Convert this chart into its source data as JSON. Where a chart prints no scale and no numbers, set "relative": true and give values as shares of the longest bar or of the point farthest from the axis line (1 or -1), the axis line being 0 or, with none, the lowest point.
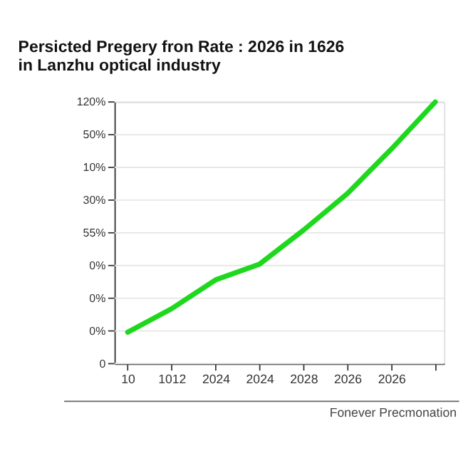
{
  "chart_data": {
    "type": "line",
    "title": "Persicted Pregery fron Rate : 2026 in 1626 in Lanzhu optical industry",
    "categories": [
      "10",
      "1012",
      "2024",
      "2024",
      "2028",
      "2026",
      "2026",
      null
    ],
    "series": [
      {
        "color": "#1ed81e",
        "values": [
          0.12,
          0.21,
          0.32,
          0.38,
          0.51,
          0.65,
          0.82,
          1
        ]
      }
    ],
    "relative": true,
    "line_style": "solid",
    "annotations": [
      "Fonever Precmonation",
      "0",
      "0%",
      "0%",
      "0%",
      "55%",
      "30%",
      "10%",
      "50%",
      "120%"
    ]
  }
}
